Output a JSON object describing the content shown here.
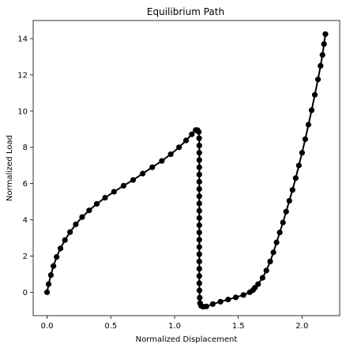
{
  "chart_data": {
    "type": "line",
    "title": "Equilibrium Path",
    "xlabel": "Normalized Displacement",
    "ylabel": "Normalized Load",
    "xlim": [
      -0.109,
      2.295
    ],
    "ylim": [
      -1.29,
      15.0
    ],
    "xticks": [
      0.0,
      0.5,
      1.0,
      1.5,
      2.0
    ],
    "yticks": [
      0,
      2,
      4,
      6,
      8,
      10,
      12,
      14
    ],
    "xtick_labels": [
      "0.0",
      "0.5",
      "1.0",
      "1.5",
      "2.0"
    ],
    "ytick_labels": [
      "0",
      "2",
      "4",
      "6",
      "8",
      "10",
      "12",
      "14"
    ],
    "grid": false,
    "series": [
      {
        "color": "#000000",
        "marker": "circle",
        "points": [
          [
            0.0,
            0.0
          ],
          [
            0.012,
            0.45
          ],
          [
            0.03,
            0.95
          ],
          [
            0.05,
            1.45
          ],
          [
            0.075,
            1.95
          ],
          [
            0.105,
            2.42
          ],
          [
            0.14,
            2.88
          ],
          [
            0.18,
            3.32
          ],
          [
            0.225,
            3.75
          ],
          [
            0.275,
            4.15
          ],
          [
            0.33,
            4.52
          ],
          [
            0.39,
            4.88
          ],
          [
            0.455,
            5.22
          ],
          [
            0.525,
            5.55
          ],
          [
            0.6,
            5.88
          ],
          [
            0.675,
            6.2
          ],
          [
            0.75,
            6.55
          ],
          [
            0.825,
            6.9
          ],
          [
            0.9,
            7.25
          ],
          [
            0.97,
            7.62
          ],
          [
            1.035,
            8.0
          ],
          [
            1.09,
            8.38
          ],
          [
            1.135,
            8.72
          ],
          [
            1.165,
            8.95
          ],
          [
            1.18,
            8.95
          ],
          [
            1.19,
            8.85
          ],
          [
            1.193,
            8.5
          ],
          [
            1.194,
            8.1
          ],
          [
            1.194,
            7.7
          ],
          [
            1.194,
            7.3
          ],
          [
            1.194,
            6.9
          ],
          [
            1.194,
            6.5
          ],
          [
            1.194,
            6.1
          ],
          [
            1.194,
            5.7
          ],
          [
            1.194,
            5.3
          ],
          [
            1.194,
            4.9
          ],
          [
            1.194,
            4.5
          ],
          [
            1.194,
            4.1
          ],
          [
            1.194,
            3.7
          ],
          [
            1.194,
            3.3
          ],
          [
            1.194,
            2.9
          ],
          [
            1.194,
            2.5
          ],
          [
            1.194,
            2.1
          ],
          [
            1.194,
            1.7
          ],
          [
            1.194,
            1.3
          ],
          [
            1.194,
            0.9
          ],
          [
            1.194,
            0.5
          ],
          [
            1.195,
            0.1
          ],
          [
            1.197,
            -0.3
          ],
          [
            1.2,
            -0.6
          ],
          [
            1.208,
            -0.75
          ],
          [
            1.225,
            -0.8
          ],
          [
            1.25,
            -0.78
          ],
          [
            1.3,
            -0.65
          ],
          [
            1.36,
            -0.52
          ],
          [
            1.42,
            -0.4
          ],
          [
            1.48,
            -0.28
          ],
          [
            1.54,
            -0.15
          ],
          [
            1.59,
            0.0
          ],
          [
            1.615,
            0.12
          ],
          [
            1.63,
            0.25
          ],
          [
            1.655,
            0.45
          ],
          [
            1.69,
            0.8
          ],
          [
            1.72,
            1.2
          ],
          [
            1.75,
            1.7
          ],
          [
            1.775,
            2.2
          ],
          [
            1.8,
            2.75
          ],
          [
            1.825,
            3.3
          ],
          [
            1.85,
            3.85
          ],
          [
            1.875,
            4.45
          ],
          [
            1.9,
            5.05
          ],
          [
            1.925,
            5.65
          ],
          [
            1.95,
            6.3
          ],
          [
            1.975,
            7.0
          ],
          [
            2.0,
            7.7
          ],
          [
            2.025,
            8.45
          ],
          [
            2.05,
            9.25
          ],
          [
            2.075,
            10.05
          ],
          [
            2.1,
            10.9
          ],
          [
            2.125,
            11.75
          ],
          [
            2.145,
            12.5
          ],
          [
            2.16,
            13.1
          ],
          [
            2.172,
            13.7
          ],
          [
            2.183,
            14.25
          ]
        ]
      }
    ]
  }
}
